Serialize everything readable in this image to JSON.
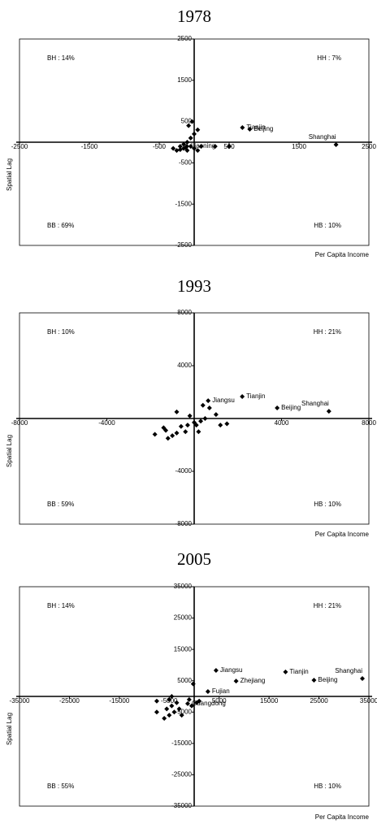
{
  "chart_data": [
    {
      "type": "scatter",
      "title": "1978",
      "xlabel": "Per Capita Income",
      "ylabel": "Spatial Lag",
      "color": "#000000",
      "xlim": [
        -2500,
        2500
      ],
      "ylim": [
        -2500,
        2500
      ],
      "xticks": [
        -2500,
        -1500,
        -500,
        500,
        1500,
        2500
      ],
      "yticks": [
        -2500,
        -1500,
        -500,
        500,
        1500,
        2500
      ],
      "quadrant_labels": {
        "top_left": "BH : 14%",
        "top_right": "HH : 7%",
        "bottom_left": "BB : 69%",
        "bottom_right": "HB : 10%"
      },
      "x": [
        690,
        795,
        2030,
        -105,
        -300,
        -250,
        -200,
        -150,
        -100,
        -50,
        0,
        50,
        100,
        -100,
        -50,
        0,
        50,
        -80,
        -30,
        -150,
        300,
        500,
        -200,
        -120
      ],
      "y": [
        354,
        315,
        -60,
        -98,
        -150,
        -200,
        -180,
        -150,
        -200,
        -100,
        -150,
        -200,
        -100,
        0,
        100,
        200,
        300,
        400,
        500,
        -50,
        -100,
        -100,
        -100,
        -130
      ],
      "point_labels": [
        "Tianjin",
        "Beijing",
        "Shanghai",
        "Liaoning",
        null,
        null,
        null,
        null,
        null,
        null,
        null,
        null,
        null,
        null,
        null,
        null,
        null,
        null,
        null,
        null,
        null,
        null,
        null,
        null
      ]
    },
    {
      "type": "scatter",
      "title": "1993",
      "xlabel": "Per Capita Income",
      "ylabel": "Spatial Lag",
      "color": "#000000",
      "xlim": [
        -8000,
        8000
      ],
      "ylim": [
        -8000,
        8000
      ],
      "xticks": [
        -8000,
        -4000,
        4000,
        8000
      ],
      "yticks": [
        -8000,
        -4000,
        4000,
        8000
      ],
      "quadrant_labels": {
        "top_left": "BH : 10%",
        "top_right": "HH : 21%",
        "bottom_left": "BB : 59%",
        "bottom_right": "HB : 10%"
      },
      "x": [
        2200,
        640,
        3800,
        6170,
        -1800,
        -1400,
        -1300,
        -1200,
        -1000,
        -800,
        -600,
        -400,
        -300,
        0,
        100,
        200,
        300,
        500,
        1000,
        1200,
        1500,
        -800,
        -200,
        400,
        700
      ],
      "y": [
        1660,
        1350,
        800,
        550,
        -1200,
        -700,
        -900,
        -1500,
        -1300,
        -1100,
        -600,
        -1000,
        -500,
        -300,
        -500,
        -1000,
        -200,
        0,
        300,
        -500,
        -400,
        500,
        200,
        1000,
        800
      ],
      "point_labels": [
        "Tianjin",
        "Jiangsu",
        "Beijing",
        "Shanghai",
        null,
        null,
        null,
        null,
        null,
        null,
        null,
        null,
        null,
        null,
        null,
        null,
        null,
        null,
        null,
        null,
        null,
        null,
        null,
        null,
        null
      ]
    },
    {
      "type": "scatter",
      "title": "2005",
      "xlabel": "Per Capita Income",
      "ylabel": "Spatial Lag",
      "color": "#000000",
      "xlim": [
        -35000,
        35000
      ],
      "ylim": [
        -35000,
        35000
      ],
      "xticks": [
        -35000,
        -25000,
        -15000,
        -5000,
        5000,
        15000,
        25000,
        35000
      ],
      "yticks": [
        -35000,
        -25000,
        -15000,
        -5000,
        5000,
        15000,
        25000,
        35000
      ],
      "quadrant_labels": {
        "top_left": "BH : 14%",
        "top_right": "HH : 21%",
        "bottom_left": "BB : 55%",
        "bottom_right": "HB : 10%"
      },
      "x": [
        4380,
        18300,
        8400,
        24000,
        33700,
        2750,
        -1300,
        -7500,
        -6000,
        -5500,
        -5000,
        -4500,
        -4000,
        -3500,
        -3000,
        -2500,
        -5000,
        -1000,
        -500,
        500,
        1000,
        -200,
        -4500,
        -7500
      ],
      "y": [
        8300,
        7800,
        4900,
        5200,
        5700,
        1550,
        -2300,
        -5000,
        -7000,
        -4000,
        -6000,
        -3000,
        -5000,
        -2000,
        -4000,
        -6000,
        -1000,
        -1000,
        -3000,
        -2000,
        -1500,
        4000,
        0,
        -1500
      ],
      "point_labels": [
        "Jiangsu",
        "Tianjin",
        "Zhejiang",
        "Beijing",
        "Shanghai",
        "Fujian",
        "Guangdong",
        null,
        null,
        null,
        null,
        null,
        null,
        null,
        null,
        null,
        null,
        null,
        null,
        null,
        null,
        null,
        null,
        null
      ]
    }
  ]
}
